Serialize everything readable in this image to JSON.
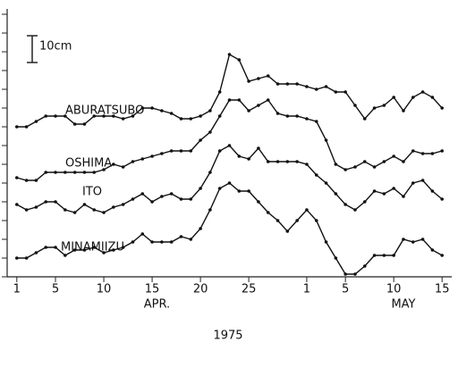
{
  "chart_data": {
    "type": "line",
    "xlabel": "1975",
    "x_group_labels": [
      {
        "label": "APR.",
        "x": 15.5
      },
      {
        "label": "MAY",
        "x": 41
      }
    ],
    "scale_bar": {
      "label": "10cm",
      "value": 10
    },
    "x": [
      1,
      2,
      3,
      4,
      5,
      6,
      7,
      8,
      9,
      10,
      11,
      12,
      13,
      14,
      15,
      16,
      17,
      18,
      19,
      20,
      21,
      22,
      23,
      24,
      25,
      26,
      27,
      28,
      29,
      30,
      31,
      32,
      33,
      34,
      35,
      36,
      37,
      38,
      39,
      40,
      41,
      42,
      43,
      44,
      45
    ],
    "xlim": [
      0,
      46
    ],
    "xticks": [
      1,
      5,
      10,
      15,
      20,
      25,
      {
        "value": 31,
        "label": "1"
      },
      {
        "value": 35,
        "label": "5"
      },
      {
        "value": 40,
        "label": "10"
      },
      {
        "value": 45,
        "label": "15"
      }
    ],
    "ylim": [
      0,
      100
    ],
    "yticks": [
      0,
      7,
      14,
      21,
      28,
      35,
      42,
      49,
      56,
      63,
      70,
      77,
      84,
      91,
      98
    ],
    "series": [
      {
        "name": "ABURATSUBO",
        "color": "#111111",
        "values": [
          56,
          56,
          58,
          60,
          60,
          60,
          57,
          57,
          60,
          60,
          60,
          59,
          60,
          63,
          63,
          62,
          61,
          59,
          59,
          60,
          62,
          69,
          83,
          81,
          73,
          74,
          75,
          72,
          72,
          72,
          71,
          70,
          71,
          69,
          69,
          64,
          59,
          63,
          64,
          67,
          62,
          67,
          69,
          67,
          63
        ]
      },
      {
        "name": "OSHIMA",
        "color": "#111111",
        "values": [
          37,
          36,
          36,
          39,
          39,
          39,
          39,
          39,
          39,
          40,
          42,
          41,
          43,
          44,
          45,
          46,
          47,
          47,
          47,
          51,
          54,
          60,
          66,
          66,
          62,
          64,
          66,
          61,
          60,
          60,
          59,
          58,
          51,
          42,
          40,
          41,
          43,
          41,
          43,
          45,
          43,
          47,
          46,
          46,
          47
        ]
      },
      {
        "name": "ITO",
        "color": "#111111",
        "values": [
          27,
          25,
          26,
          28,
          28,
          25,
          24,
          27,
          25,
          24,
          26,
          27,
          29,
          31,
          28,
          30,
          31,
          29,
          29,
          33,
          39,
          47,
          49,
          45,
          44,
          48,
          43,
          43,
          43,
          43,
          42,
          38,
          35,
          31,
          27,
          25,
          28,
          32,
          31,
          33,
          30,
          35,
          36,
          32,
          29
        ]
      },
      {
        "name": "MINAMIIZU",
        "color": "#111111",
        "values": [
          7,
          7,
          9,
          11,
          11,
          8,
          10,
          10,
          11,
          9,
          10,
          11,
          13,
          16,
          13,
          13,
          13,
          15,
          14,
          18,
          25,
          33,
          35,
          32,
          32,
          28,
          24,
          21,
          17,
          21,
          25,
          21,
          13,
          7,
          1,
          1,
          4,
          8,
          8,
          8,
          14,
          13,
          14,
          10,
          8
        ]
      }
    ]
  }
}
